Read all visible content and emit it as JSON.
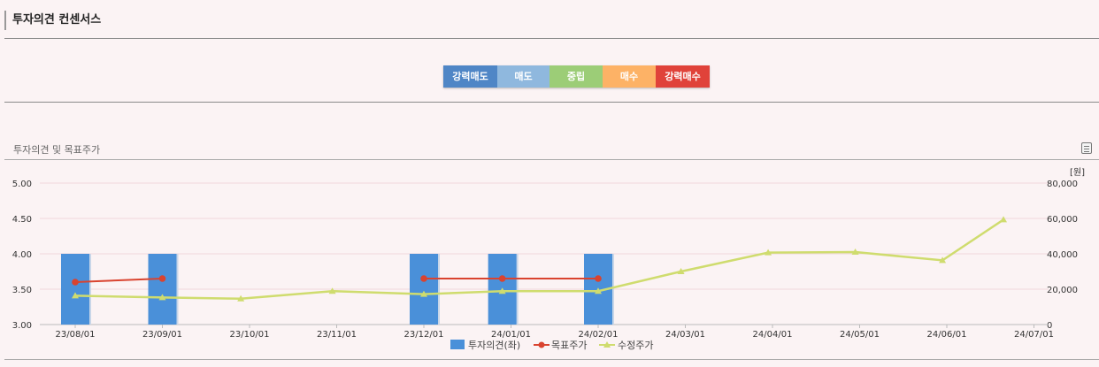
{
  "header": {
    "title": "투자의견 컨센서스"
  },
  "scale": {
    "items": [
      {
        "label": "강력매도",
        "color": "#4f86c6",
        "width": 61
      },
      {
        "label": "매도",
        "color": "#8fb8de",
        "width": 59
      },
      {
        "label": "중립",
        "color": "#9ccd77",
        "width": 60
      },
      {
        "label": "매수",
        "color": "#fdb266",
        "width": 60
      },
      {
        "label": "강력매수",
        "color": "#e0423a",
        "width": 61
      }
    ]
  },
  "chart_title": "투자의견 및 목표주가",
  "chart_data": {
    "type": "bar+line",
    "categories": [
      "23/08/01",
      "23/09/01",
      "23/10/01",
      "23/11/01",
      "23/12/01",
      "24/01/01",
      "24/02/01",
      "24/03/01",
      "24/04/01",
      "24/05/01",
      "24/06/01",
      "24/07/01"
    ],
    "left_axis": {
      "ylim": [
        3.0,
        5.0
      ],
      "ticks": [
        "3.00",
        "3.50",
        "4.00",
        "4.50",
        "5.00"
      ]
    },
    "right_axis": {
      "unit": "[원]",
      "ylim": [
        0,
        80000
      ],
      "ticks": [
        "0",
        "20,000",
        "40,000",
        "60,000",
        "80,000"
      ]
    },
    "series": [
      {
        "name": "투자의견(좌)",
        "kind": "bar",
        "axis": "left",
        "color": "#4a90d9",
        "points": [
          [
            0.0,
            4.0
          ],
          [
            1.0,
            4.0
          ],
          [
            4.0,
            4.0
          ],
          [
            4.9,
            4.0
          ],
          [
            6.0,
            4.0
          ]
        ]
      },
      {
        "name": "목표주가",
        "kind": "line",
        "axis": "right",
        "color": "#d9432f",
        "segments": [
          [
            [
              0.0,
              24000
            ],
            [
              1.0,
              26000
            ]
          ],
          [
            [
              4.0,
              26000
            ],
            [
              4.9,
              26000
            ],
            [
              6.0,
              26000
            ]
          ]
        ]
      },
      {
        "name": "수정주가",
        "kind": "line",
        "axis": "right",
        "color": "#cfdc6e",
        "points": [
          [
            0.0,
            16300
          ],
          [
            1.0,
            15300
          ],
          [
            1.9,
            14600
          ],
          [
            2.95,
            18900
          ],
          [
            4.0,
            17200
          ],
          [
            4.9,
            18900
          ],
          [
            6.0,
            18900
          ],
          [
            6.95,
            30000
          ],
          [
            7.95,
            40700
          ],
          [
            8.95,
            41000
          ],
          [
            9.95,
            36300
          ],
          [
            10.65,
            59300
          ]
        ]
      }
    ],
    "legend": {
      "position": "bottom"
    },
    "grid": true
  }
}
